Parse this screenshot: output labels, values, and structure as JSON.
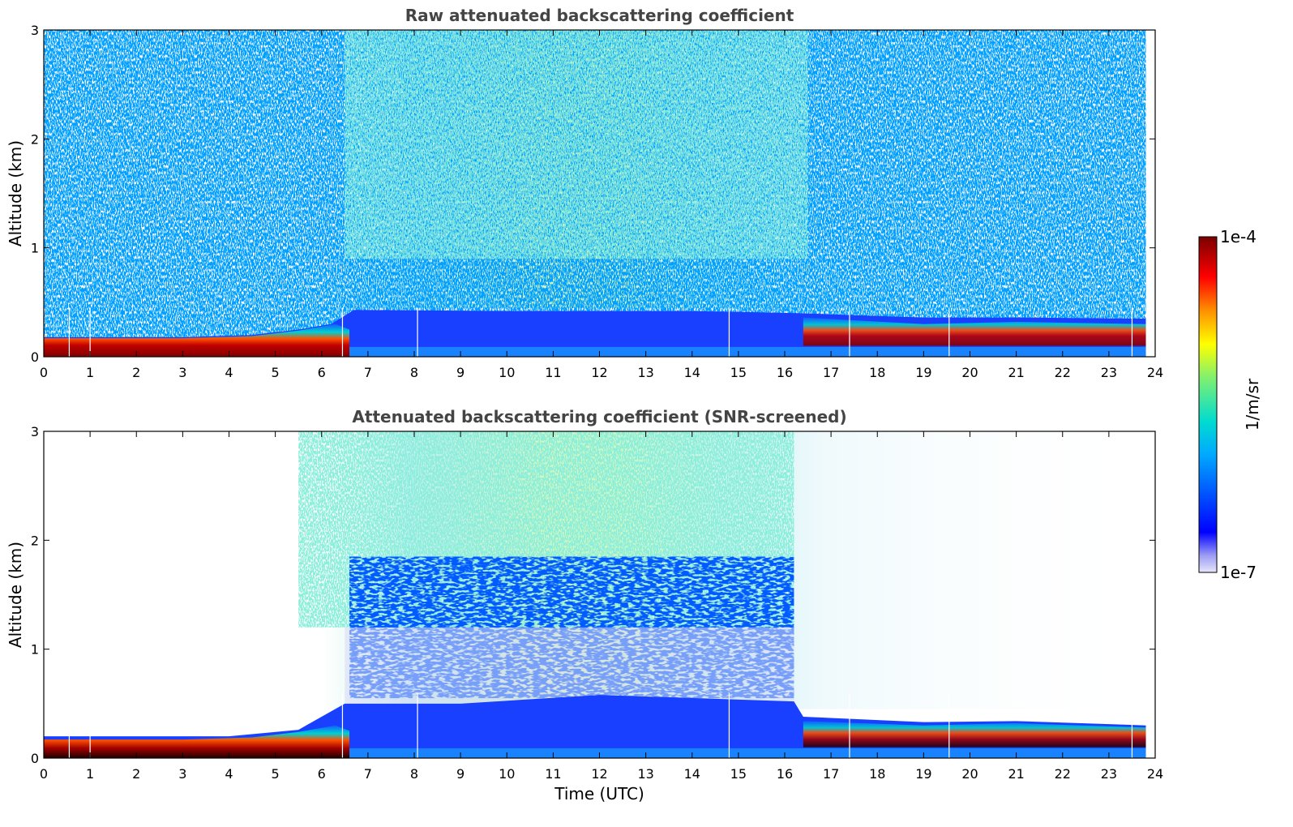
{
  "chart_data": [
    {
      "type": "heatmap",
      "title": "Raw attenuated backscattering coefficient",
      "xlabel": "",
      "ylabel": "Altitude (km)",
      "xlim": [
        0,
        24
      ],
      "ylim": [
        0,
        3
      ],
      "x_ticks": [
        "0",
        "1",
        "2",
        "3",
        "4",
        "5",
        "6",
        "7",
        "8",
        "9",
        "10",
        "11",
        "12",
        "13",
        "14",
        "15",
        "16",
        "17",
        "18",
        "19",
        "20",
        "21",
        "22",
        "23",
        "24"
      ],
      "y_ticks": [
        "0",
        "1",
        "2",
        "3"
      ],
      "data_end_hour": 23.8,
      "boundary_layer_top_km": [
        {
          "x": 0,
          "y": 0.18
        },
        {
          "x": 3,
          "y": 0.18
        },
        {
          "x": 4.5,
          "y": 0.2
        },
        {
          "x": 5.5,
          "y": 0.25
        },
        {
          "x": 6.2,
          "y": 0.3
        },
        {
          "x": 6.7,
          "y": 0.43
        },
        {
          "x": 10,
          "y": 0.42
        },
        {
          "x": 14,
          "y": 0.42
        },
        {
          "x": 16.3,
          "y": 0.4
        },
        {
          "x": 19,
          "y": 0.36
        },
        {
          "x": 21,
          "y": 0.36
        },
        {
          "x": 23.8,
          "y": 0.35
        }
      ]
    },
    {
      "type": "heatmap",
      "title": "Attenuated backscattering coefficient (SNR-screened)",
      "xlabel": "Time (UTC)",
      "ylabel": "Altitude (km)",
      "xlim": [
        0,
        24
      ],
      "ylim": [
        0,
        3
      ],
      "x_ticks": [
        "0",
        "1",
        "2",
        "3",
        "4",
        "5",
        "6",
        "7",
        "8",
        "9",
        "10",
        "11",
        "12",
        "13",
        "14",
        "15",
        "16",
        "17",
        "18",
        "19",
        "20",
        "21",
        "22",
        "23",
        "24"
      ],
      "y_ticks": [
        "0",
        "1",
        "2",
        "3"
      ],
      "data_end_hour": 23.8,
      "boundary_layer_top_km": [
        {
          "x": 0,
          "y": 0.2
        },
        {
          "x": 4,
          "y": 0.2
        },
        {
          "x": 5.5,
          "y": 0.26
        },
        {
          "x": 6.5,
          "y": 0.5
        },
        {
          "x": 9,
          "y": 0.5
        },
        {
          "x": 12,
          "y": 0.58
        },
        {
          "x": 16.2,
          "y": 0.52
        },
        {
          "x": 16.4,
          "y": 0.38
        },
        {
          "x": 19,
          "y": 0.33
        },
        {
          "x": 21,
          "y": 0.34
        },
        {
          "x": 23.8,
          "y": 0.3
        }
      ]
    }
  ],
  "colorbar": {
    "label": "1/m/sr",
    "max_label": "1e-4",
    "min_label": "1e-7",
    "vmin": 1e-07,
    "vmax": 0.0001,
    "stops": [
      "#dcdcf5",
      "#0000ff",
      "#00b4ff",
      "#00e0c0",
      "#a0f060",
      "#ffff00",
      "#ff8000",
      "#ff0000",
      "#800000"
    ]
  },
  "colors": {
    "title": "#444444",
    "axis": "#000000"
  }
}
